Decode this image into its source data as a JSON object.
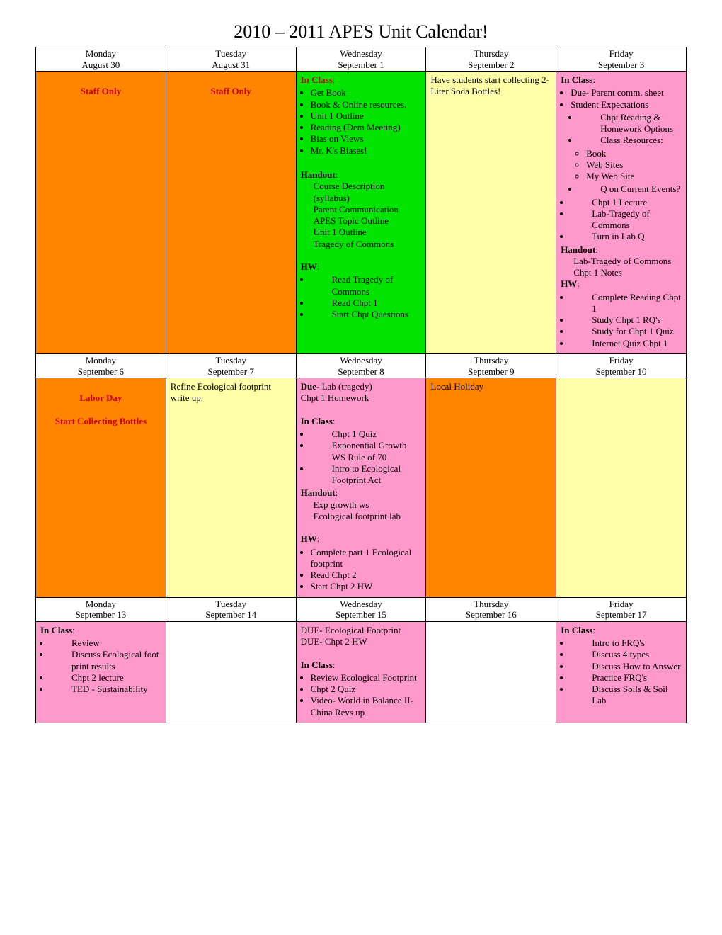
{
  "title": "2010 – 2011 APES Unit Calendar!",
  "colors": {
    "orange": "#ff8500",
    "green": "#00e400",
    "yellow": "#ffffa8",
    "pink": "#ff99cc",
    "white": "#ffffff",
    "red_text": "#cc0000",
    "border": "#000000"
  },
  "weeks": [
    {
      "headers": {
        "days": [
          "Monday",
          "Tuesday",
          "Wednesday",
          "Thursday",
          "Friday"
        ],
        "dates": [
          "August 30",
          "August 31",
          "September 1",
          "September 2",
          "September 3"
        ]
      },
      "cells": {
        "mon": {
          "bg": "orange",
          "lines": [
            "",
            "Staff Only"
          ]
        },
        "tue": {
          "bg": "orange",
          "lines": [
            "",
            "Staff Only"
          ]
        },
        "wed": {
          "bg": "green",
          "in_class_label": "In Class",
          "in_class": [
            "Get Book",
            "Book & Online resources.",
            "Unit 1 Outline",
            "Reading (Dem Meeting)",
            "Bias on Views",
            "Mr. K's Biases!"
          ],
          "handout_label": "Handout",
          "handout": [
            "Course Description (syllabus)",
            "Parent Communication",
            "APES Topic Outline",
            "Unit 1 Outline",
            "Tragedy of Commons"
          ],
          "hw_label": "HW",
          "hw": [
            "Read Tragedy of Commons",
            "Read Chpt 1",
            "Start Chpt Questions"
          ]
        },
        "thu": {
          "bg": "yellow",
          "text": "Have students start collecting 2- Liter Soda Bottles!"
        },
        "fri": {
          "bg": "pink",
          "in_class_label": "In Class",
          "in_class_top": [
            "Due- Parent comm. sheet",
            "Student Expectations"
          ],
          "in_class_sub": [
            "Chpt Reading & Homework Options",
            "Class Resources:"
          ],
          "in_class_sub2": [
            "Book",
            "Web Sites",
            "My Web Site"
          ],
          "in_class_sub3": [
            "Q on Current Events?"
          ],
          "in_class_bottom": [
            "Chpt 1 Lecture",
            "Lab-Tragedy of Commons",
            "Turn in Lab Q"
          ],
          "handout_label": "Handout",
          "handout": [
            "Lab-Tragedy of Commons",
            "Chpt 1 Notes"
          ],
          "hw_label": "HW",
          "hw": [
            "Complete Reading Chpt 1",
            "Study Chpt 1 RQ's",
            "Study for Chpt 1 Quiz",
            "Internet Quiz Chpt 1"
          ]
        }
      }
    },
    {
      "headers": {
        "days": [
          "Monday",
          "Tuesday",
          "Wednesday",
          "Thursday",
          "Friday"
        ],
        "dates": [
          "September 6",
          "September 7",
          "September 8",
          "September 9",
          "September 10"
        ]
      },
      "cells": {
        "mon": {
          "bg": "orange",
          "lines": [
            "",
            "Labor Day",
            "",
            "Start Collecting Bottles"
          ]
        },
        "tue": {
          "bg": "yellow",
          "text": "Refine Ecological footprint write up."
        },
        "wed": {
          "bg": "pink",
          "due_label": "Due",
          "due": "- Lab (tragedy)",
          "due_line2": "Chpt 1 Homework",
          "in_class_label": "In Class",
          "in_class": [
            "Chpt 1 Quiz",
            "Exponential Growth WS Rule of 70",
            "Intro to Ecological Footprint Act"
          ],
          "handout_label": "Handout",
          "handout": [
            "Exp growth ws",
            "Ecological footprint lab"
          ],
          "hw_label": "HW",
          "hw": [
            "Complete part 1 Ecological footprint",
            "Read Chpt 2",
            "Start Chpt 2 HW"
          ]
        },
        "thu": {
          "bg": "orange",
          "text": "Local Holiday"
        },
        "fri": {
          "bg": "yellow",
          "text": ""
        }
      }
    },
    {
      "headers": {
        "days": [
          "Monday",
          "Tuesday",
          "Wednesday",
          "Thursday",
          "Friday"
        ],
        "dates": [
          "September 13",
          "September 14",
          "September 15",
          "September 16",
          "September 17"
        ]
      },
      "cells": {
        "mon": {
          "bg": "pink",
          "in_class_label": "In Class",
          "in_class": [
            "Review",
            "Discuss Ecological foot print results",
            "Chpt 2 lecture",
            "TED - Sustainability"
          ]
        },
        "tue": {
          "bg": "white",
          "text": ""
        },
        "wed": {
          "bg": "pink",
          "top": [
            "DUE- Ecological Footprint",
            "DUE- Chpt 2 HW"
          ],
          "in_class_label": "In Class",
          "in_class": [
            "Review Ecological Footprint",
            "Chpt 2 Quiz",
            "Video- World in Balance II- China Revs up"
          ]
        },
        "thu": {
          "bg": "white",
          "text": ""
        },
        "fri": {
          "bg": "pink",
          "in_class_label": "In Class",
          "in_class": [
            "Intro to FRQ's",
            "Discuss 4 types",
            "Discuss How to Answer",
            "Practice FRQ's",
            "Discuss Soils & Soil Lab"
          ]
        }
      }
    }
  ]
}
